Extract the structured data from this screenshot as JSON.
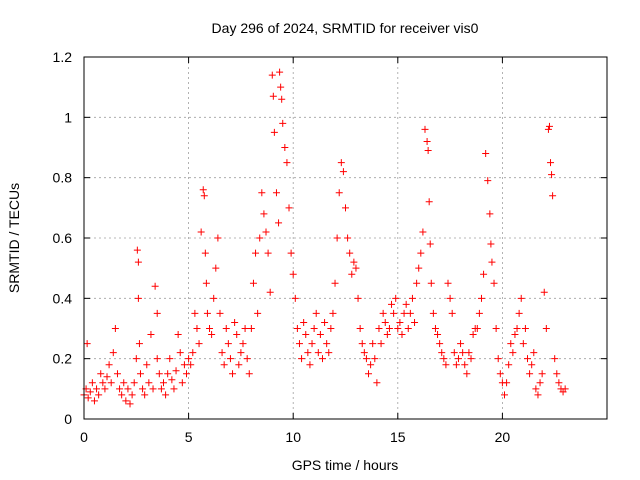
{
  "chart_data": {
    "type": "scatter",
    "title": "Day 296 of 2024, SRMTID for receiver vis0",
    "xlabel": "GPS time / hours",
    "ylabel": "SRMTID / TECUs",
    "xlim": [
      0,
      25
    ],
    "ylim": [
      0,
      1.2
    ],
    "xticks": [
      0,
      5,
      10,
      15,
      20
    ],
    "xtick_labels": [
      "0",
      "5",
      "10",
      "15",
      "20"
    ],
    "yticks": [
      0,
      0.2,
      0.4,
      0.6,
      0.8,
      1,
      1.2
    ],
    "ytick_labels": [
      "0",
      "0.2",
      "0.4",
      "0.6",
      "0.8",
      "1",
      "1.2"
    ],
    "grid": true,
    "marker": "+",
    "series": [
      {
        "name": "vis0",
        "color": "#ff0000",
        "x": [
          0.0,
          0.1,
          0.15,
          0.2,
          0.3,
          0.4,
          0.5,
          0.6,
          0.7,
          0.8,
          0.9,
          1.0,
          1.1,
          1.2,
          1.3,
          1.4,
          1.5,
          1.6,
          1.7,
          1.8,
          1.9,
          2.0,
          2.1,
          2.2,
          2.3,
          2.4,
          2.5,
          2.55,
          2.6,
          2.6,
          2.65,
          2.7,
          2.8,
          2.9,
          3.0,
          3.1,
          3.2,
          3.3,
          3.4,
          3.5,
          3.5,
          3.6,
          3.7,
          3.8,
          3.9,
          4.0,
          4.1,
          4.2,
          4.3,
          4.4,
          4.5,
          4.6,
          4.7,
          4.8,
          4.9,
          5.0,
          5.1,
          5.2,
          5.3,
          5.4,
          5.5,
          5.6,
          5.7,
          5.75,
          5.8,
          5.85,
          5.9,
          6.0,
          6.1,
          6.2,
          6.3,
          6.4,
          6.5,
          6.6,
          6.7,
          6.8,
          6.9,
          7.0,
          7.1,
          7.2,
          7.3,
          7.4,
          7.5,
          7.6,
          7.7,
          7.8,
          7.9,
          8.0,
          8.1,
          8.2,
          8.3,
          8.4,
          8.5,
          8.6,
          8.7,
          8.8,
          8.9,
          9.0,
          9.05,
          9.1,
          9.2,
          9.3,
          9.35,
          9.4,
          9.45,
          9.5,
          9.6,
          9.7,
          9.8,
          9.9,
          10.0,
          10.1,
          10.2,
          10.3,
          10.4,
          10.5,
          10.6,
          10.7,
          10.8,
          10.9,
          11.0,
          11.1,
          11.2,
          11.3,
          11.4,
          11.5,
          11.6,
          11.7,
          11.8,
          11.9,
          12.0,
          12.1,
          12.2,
          12.3,
          12.4,
          12.5,
          12.6,
          12.7,
          12.8,
          12.9,
          13.0,
          13.1,
          13.2,
          13.3,
          13.4,
          13.5,
          13.6,
          13.7,
          13.8,
          13.9,
          14.0,
          14.1,
          14.2,
          14.3,
          14.4,
          14.5,
          14.6,
          14.7,
          14.8,
          14.9,
          15.0,
          15.1,
          15.2,
          15.3,
          15.4,
          15.5,
          15.6,
          15.7,
          15.8,
          15.9,
          16.0,
          16.1,
          16.2,
          16.3,
          16.4,
          16.45,
          16.5,
          16.55,
          16.6,
          16.7,
          16.8,
          16.9,
          17.0,
          17.1,
          17.2,
          17.3,
          17.4,
          17.5,
          17.6,
          17.7,
          17.8,
          17.9,
          18.0,
          18.1,
          18.2,
          18.3,
          18.4,
          18.5,
          18.6,
          18.7,
          18.8,
          18.9,
          19.0,
          19.1,
          19.2,
          19.3,
          19.4,
          19.45,
          19.5,
          19.6,
          19.7,
          19.8,
          19.9,
          20.0,
          20.1,
          20.2,
          20.3,
          20.4,
          20.5,
          20.6,
          20.7,
          20.8,
          20.9,
          21.0,
          21.1,
          21.2,
          21.3,
          21.4,
          21.5,
          21.6,
          21.7,
          21.8,
          21.9,
          22.0,
          22.1,
          22.2,
          22.25,
          22.3,
          22.35,
          22.4,
          22.5,
          22.6,
          22.7,
          22.8,
          22.9,
          23.0
        ],
        "y": [
          0.08,
          0.1,
          0.25,
          0.07,
          0.09,
          0.12,
          0.06,
          0.1,
          0.08,
          0.15,
          0.12,
          0.1,
          0.14,
          0.18,
          0.12,
          0.22,
          0.3,
          0.15,
          0.1,
          0.08,
          0.12,
          0.06,
          0.1,
          0.05,
          0.08,
          0.12,
          0.2,
          0.56,
          0.52,
          0.4,
          0.25,
          0.15,
          0.1,
          0.08,
          0.18,
          0.12,
          0.28,
          0.1,
          0.44,
          0.35,
          0.2,
          0.15,
          0.1,
          0.12,
          0.08,
          0.15,
          0.2,
          0.13,
          0.1,
          0.16,
          0.28,
          0.22,
          0.12,
          0.18,
          0.15,
          0.2,
          0.18,
          0.22,
          0.35,
          0.3,
          0.25,
          0.62,
          0.76,
          0.74,
          0.55,
          0.45,
          0.35,
          0.3,
          0.28,
          0.4,
          0.5,
          0.6,
          0.35,
          0.22,
          0.18,
          0.3,
          0.25,
          0.2,
          0.15,
          0.32,
          0.28,
          0.18,
          0.22,
          0.25,
          0.3,
          0.2,
          0.15,
          0.3,
          0.45,
          0.55,
          0.35,
          0.6,
          0.75,
          0.68,
          0.62,
          0.55,
          0.42,
          1.14,
          1.07,
          0.95,
          0.75,
          0.65,
          1.15,
          1.1,
          1.06,
          0.98,
          0.9,
          0.85,
          0.7,
          0.55,
          0.48,
          0.4,
          0.3,
          0.25,
          0.2,
          0.32,
          0.28,
          0.22,
          0.18,
          0.25,
          0.3,
          0.35,
          0.22,
          0.28,
          0.2,
          0.32,
          0.25,
          0.22,
          0.3,
          0.35,
          0.45,
          0.6,
          0.75,
          0.85,
          0.82,
          0.7,
          0.6,
          0.55,
          0.48,
          0.52,
          0.5,
          0.4,
          0.3,
          0.25,
          0.22,
          0.2,
          0.15,
          0.18,
          0.25,
          0.2,
          0.12,
          0.3,
          0.25,
          0.35,
          0.32,
          0.28,
          0.3,
          0.38,
          0.35,
          0.4,
          0.3,
          0.32,
          0.28,
          0.35,
          0.38,
          0.3,
          0.35,
          0.4,
          0.32,
          0.45,
          0.5,
          0.55,
          0.62,
          0.96,
          0.92,
          0.89,
          0.72,
          0.58,
          0.45,
          0.35,
          0.3,
          0.28,
          0.25,
          0.22,
          0.2,
          0.18,
          0.45,
          0.4,
          0.35,
          0.22,
          0.18,
          0.2,
          0.25,
          0.22,
          0.18,
          0.15,
          0.22,
          0.2,
          0.28,
          0.3,
          0.3,
          0.35,
          0.4,
          0.48,
          0.88,
          0.79,
          0.68,
          0.58,
          0.52,
          0.45,
          0.3,
          0.2,
          0.15,
          0.12,
          0.08,
          0.12,
          0.18,
          0.25,
          0.22,
          0.28,
          0.3,
          0.35,
          0.4,
          0.25,
          0.3,
          0.2,
          0.15,
          0.18,
          0.22,
          0.1,
          0.08,
          0.12,
          0.15,
          0.42,
          0.3,
          0.96,
          0.97,
          0.85,
          0.81,
          0.74,
          0.2,
          0.15,
          0.12,
          0.1,
          0.09,
          0.1
        ]
      }
    ]
  }
}
